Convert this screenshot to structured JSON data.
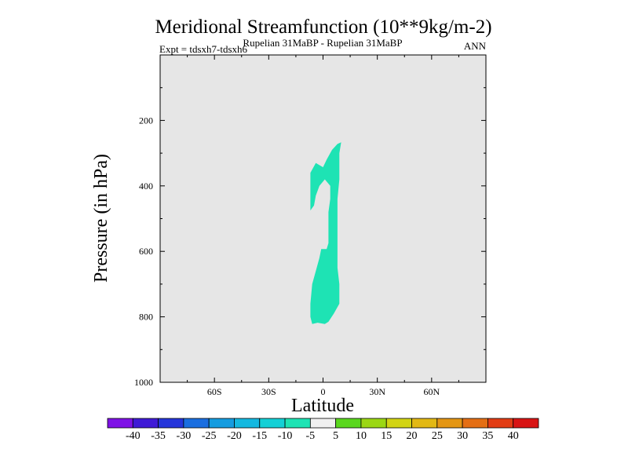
{
  "chart_data": {
    "type": "heatmap",
    "title": "Meridional Streamfunction (10**9kg/m-2)",
    "subtitle_center": "Rupelian  31MaBP - Rupelian  31MaBP",
    "subtitle_left": "Expt = tdsxh7-tdsxh6",
    "subtitle_right": "ANN",
    "xlabel": "Latitude",
    "ylabel": "Pressure (in hPa)",
    "xlim": [
      -90,
      90
    ],
    "ylim": [
      1000,
      0
    ],
    "x_ticks": [
      {
        "value": -60,
        "label": "60S"
      },
      {
        "value": -30,
        "label": "30S"
      },
      {
        "value": 0,
        "label": "0"
      },
      {
        "value": 30,
        "label": "30N"
      },
      {
        "value": 60,
        "label": "60N"
      }
    ],
    "y_ticks": [
      {
        "value": 200,
        "label": "200"
      },
      {
        "value": 400,
        "label": "400"
      },
      {
        "value": 600,
        "label": "600"
      },
      {
        "value": 800,
        "label": "800"
      },
      {
        "value": 1000,
        "label": "1000"
      }
    ],
    "background_color": "#e6e6e6",
    "contour_regions": [
      {
        "name": "cell-range-minus10-to-minus5",
        "color": "#1ee3b4",
        "range": [
          -10,
          -5
        ],
        "polygon_lat_p": [
          [
            -4,
            330
          ],
          [
            0,
            343
          ],
          [
            2,
            320
          ],
          [
            5,
            290
          ],
          [
            8,
            272
          ],
          [
            10,
            267
          ],
          [
            9,
            300
          ],
          [
            9,
            330
          ],
          [
            9,
            380
          ],
          [
            8,
            440
          ],
          [
            8,
            520
          ],
          [
            8,
            595
          ],
          [
            8,
            650
          ],
          [
            9,
            700
          ],
          [
            9,
            760
          ],
          [
            6,
            790
          ],
          [
            3,
            815
          ],
          [
            1,
            822
          ],
          [
            -3,
            818
          ],
          [
            -6,
            822
          ],
          [
            -7,
            800
          ],
          [
            -7,
            760
          ],
          [
            -6,
            700
          ],
          [
            -4,
            660
          ],
          [
            -2,
            620
          ],
          [
            -1,
            593
          ],
          [
            2,
            593
          ],
          [
            3,
            575
          ],
          [
            3,
            520
          ],
          [
            3,
            480
          ],
          [
            4,
            440
          ],
          [
            4,
            400
          ],
          [
            1,
            380
          ],
          [
            -2,
            400
          ],
          [
            -4,
            430
          ],
          [
            -5,
            460
          ],
          [
            -7,
            475
          ],
          [
            -7,
            440
          ],
          [
            -7,
            400
          ],
          [
            -7,
            360
          ]
        ]
      }
    ],
    "colorbar": {
      "labels": [
        "-40",
        "-35",
        "-30",
        "-25",
        "-20",
        "-15",
        "-10",
        "-5",
        "5",
        "10",
        "15",
        "20",
        "25",
        "30",
        "35",
        "40"
      ],
      "colors": [
        "#7f12e6",
        "#3f1ad6",
        "#2535da",
        "#1a6ee0",
        "#159ce0",
        "#14b8e0",
        "#14d0d6",
        "#1ee3b4",
        "#f0f0f0",
        "#5ad71e",
        "#9bd714",
        "#d2d414",
        "#e2b814",
        "#e49614",
        "#e46e14",
        "#e23c14",
        "#d81414"
      ]
    }
  }
}
